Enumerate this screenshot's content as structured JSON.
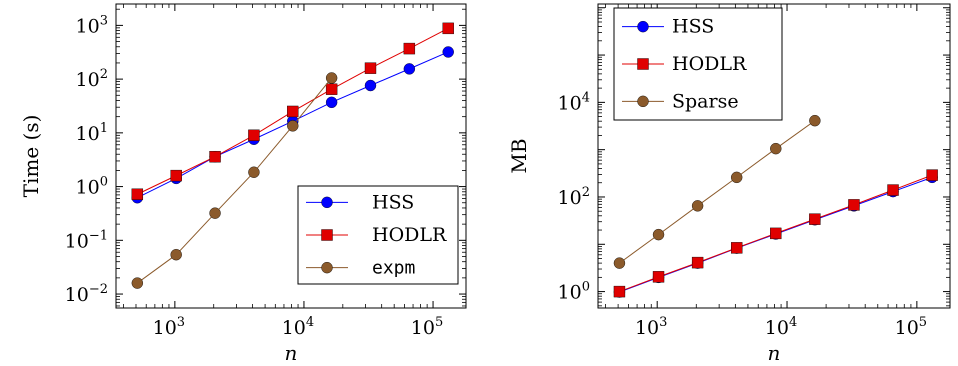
{
  "chart_data": [
    {
      "type": "line",
      "xscale": "log",
      "yscale": "log",
      "xlabel": "n",
      "ylabel": "Time (s)",
      "xlim": [
        350,
        180000
      ],
      "ylim": [
        0.0055,
        2500
      ],
      "xticks": [
        {
          "value": 1000,
          "base": "10",
          "exp": "3"
        },
        {
          "value": 10000,
          "base": "10",
          "exp": "4"
        },
        {
          "value": 100000,
          "base": "10",
          "exp": "5"
        }
      ],
      "yticks": [
        {
          "value": 0.01,
          "base": "10",
          "exp": "−2"
        },
        {
          "value": 0.1,
          "base": "10",
          "exp": "−1"
        },
        {
          "value": 1,
          "base": "10",
          "exp": "0"
        },
        {
          "value": 10,
          "base": "10",
          "exp": "1"
        },
        {
          "value": 100,
          "base": "10",
          "exp": "2"
        },
        {
          "value": 1000,
          "base": "10",
          "exp": "3"
        }
      ],
      "legend_position": "bottom-right",
      "series": [
        {
          "name": "HSS",
          "color": "#0000ff",
          "marker": "circle",
          "x": [
            512,
            1024,
            2048,
            4096,
            8192,
            16384,
            32768,
            65536,
            131072
          ],
          "y": [
            0.62,
            1.42,
            3.6,
            7.6,
            16.5,
            37,
            76,
            155,
            320
          ]
        },
        {
          "name": "HODLR",
          "color": "#e00000",
          "marker": "square",
          "x": [
            512,
            1024,
            2048,
            4096,
            8192,
            16384,
            32768,
            65536,
            131072
          ],
          "y": [
            0.72,
            1.6,
            3.6,
            9.0,
            25,
            65,
            160,
            370,
            880
          ]
        },
        {
          "name": "expm",
          "mono": true,
          "color": "#8b5a2b",
          "marker": "circle",
          "x": [
            512,
            1024,
            2048,
            4096,
            8192,
            16384
          ],
          "y": [
            0.016,
            0.054,
            0.32,
            1.85,
            13.5,
            105
          ]
        }
      ]
    },
    {
      "type": "line",
      "xscale": "log",
      "yscale": "log",
      "xlabel": "n",
      "ylabel": "MB",
      "xlim": [
        350,
        180000
      ],
      "ylim": [
        0.45,
        1200000
      ],
      "xticks": [
        {
          "value": 1000,
          "base": "10",
          "exp": "3"
        },
        {
          "value": 10000,
          "base": "10",
          "exp": "4"
        },
        {
          "value": 100000,
          "base": "10",
          "exp": "5"
        }
      ],
      "yticks": [
        {
          "value": 1,
          "base": "10",
          "exp": "0"
        },
        {
          "value": 100,
          "base": "10",
          "exp": "2"
        },
        {
          "value": 10000,
          "base": "10",
          "exp": "4"
        }
      ],
      "legend_position": "top-left",
      "series": [
        {
          "name": "HSS",
          "color": "#0000ff",
          "marker": "circle",
          "x": [
            512,
            1024,
            2048,
            4096,
            8192,
            16384,
            32768,
            65536,
            131072
          ],
          "y": [
            0.98,
            2.0,
            4.0,
            8.3,
            16.5,
            33,
            65,
            130,
            260
          ]
        },
        {
          "name": "HODLR",
          "color": "#e00000",
          "marker": "square",
          "x": [
            512,
            1024,
            2048,
            4096,
            8192,
            16384,
            32768,
            65536,
            131072
          ],
          "y": [
            1.0,
            2.05,
            4.1,
            8.4,
            17,
            34,
            68,
            140,
            290
          ]
        },
        {
          "name": "Sparse",
          "color": "#8b5a2b",
          "marker": "circle",
          "x": [
            512,
            1024,
            2048,
            4096,
            8192,
            16384
          ],
          "y": [
            4.0,
            16,
            65,
            260,
            1050,
            4100
          ]
        }
      ]
    }
  ]
}
